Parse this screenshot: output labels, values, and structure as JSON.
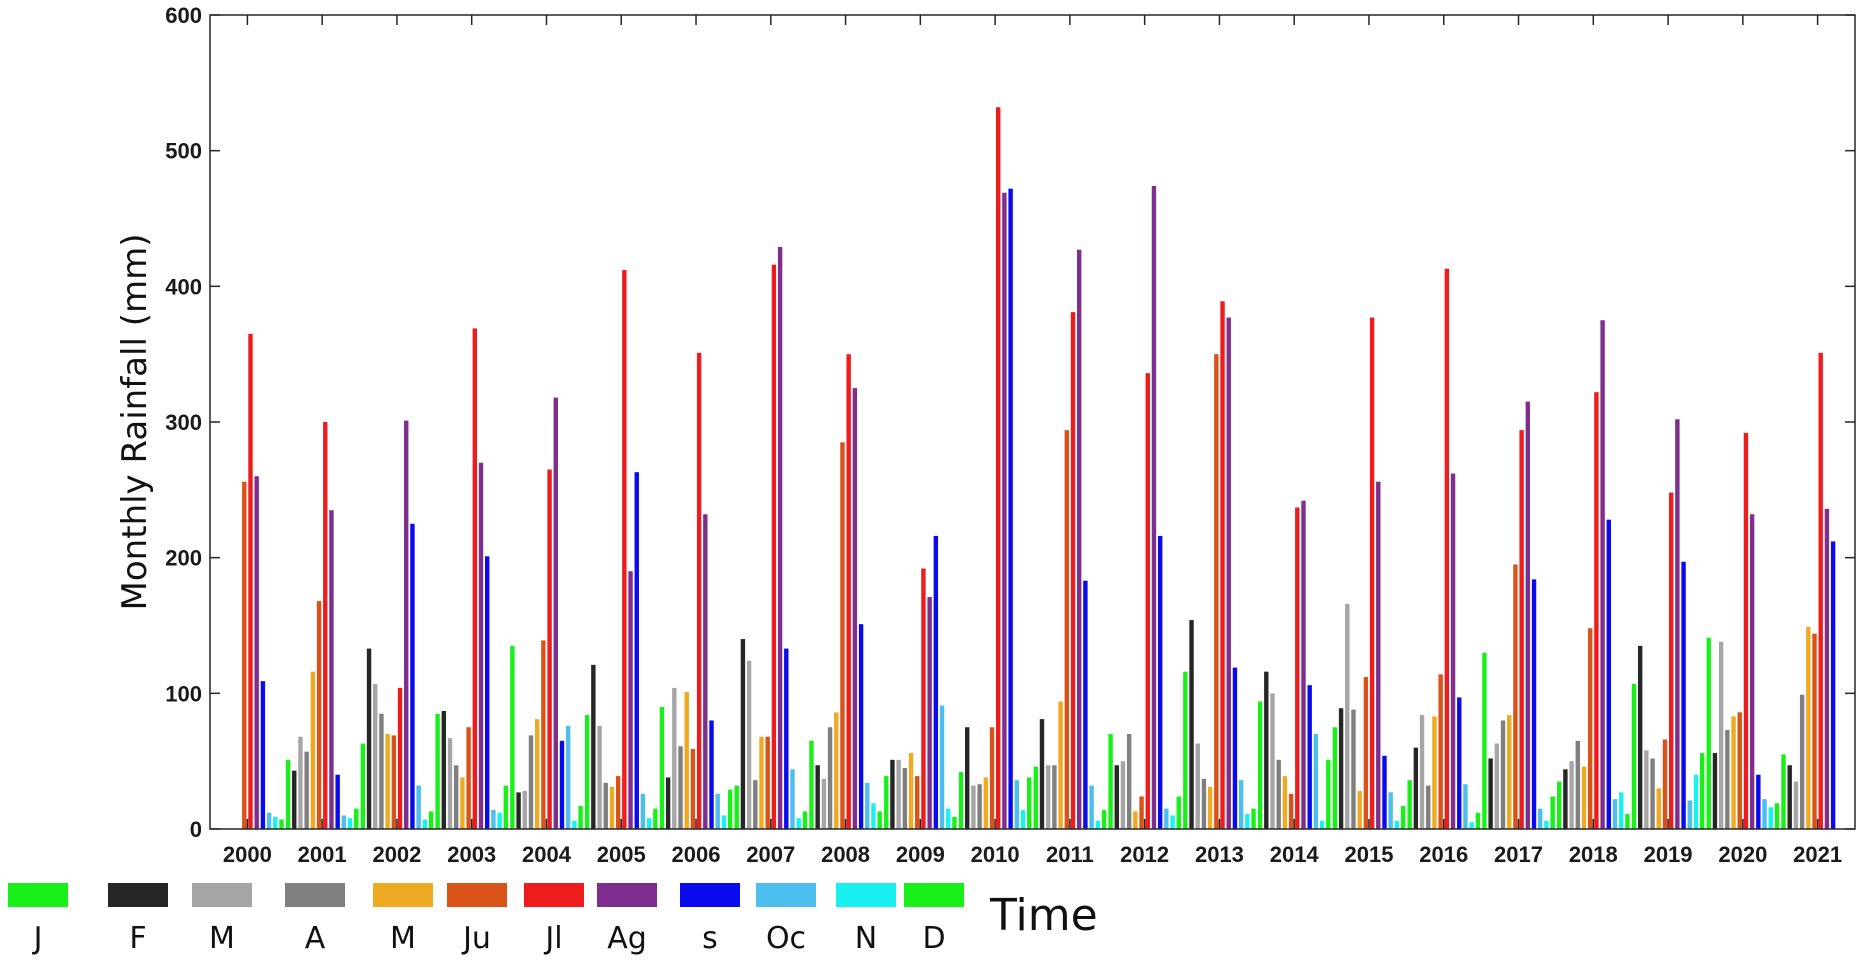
{
  "chart_data": {
    "type": "bar",
    "title": "",
    "xlabel": "Time",
    "ylabel": "Monthly Rainfall (mm)",
    "ylim": [
      0,
      600
    ],
    "yticks": [
      0,
      100,
      200,
      300,
      400,
      500,
      600
    ],
    "grid": false,
    "legend_position": "bottom",
    "categories": [
      "2000",
      "2001",
      "2002",
      "2003",
      "2004",
      "2005",
      "2006",
      "2007",
      "2008",
      "2009",
      "2010",
      "2011",
      "2012",
      "2013",
      "2014",
      "2015",
      "2016",
      "2017",
      "2018",
      "2019",
      "2020",
      "2021"
    ],
    "series": [
      {
        "name": "J",
        "color": "#19f019",
        "values": [
          0,
          51,
          63,
          85,
          135,
          84,
          90,
          32,
          65,
          39,
          42,
          46,
          70,
          116,
          94,
          75,
          36,
          130,
          35,
          107,
          141,
          55
        ]
      },
      {
        "name": "F",
        "color": "#262626",
        "values": [
          0,
          43,
          133,
          87,
          27,
          121,
          38,
          140,
          47,
          51,
          75,
          81,
          47,
          154,
          116,
          89,
          60,
          52,
          44,
          135,
          56,
          47
        ]
      },
      {
        "name": "M",
        "color": "#a6a6a6",
        "values": [
          0,
          68,
          107,
          67,
          28,
          76,
          104,
          124,
          37,
          51,
          32,
          47,
          50,
          63,
          100,
          166,
          84,
          63,
          50,
          58,
          138,
          35
        ]
      },
      {
        "name": "A",
        "color": "#7f7f7f",
        "values": [
          0,
          57,
          85,
          47,
          69,
          34,
          61,
          36,
          75,
          45,
          33,
          47,
          70,
          37,
          51,
          88,
          32,
          80,
          65,
          52,
          73,
          99
        ]
      },
      {
        "name": "M",
        "color": "#edaa22",
        "values": [
          0,
          116,
          70,
          38,
          81,
          31,
          101,
          68,
          86,
          56,
          38,
          94,
          13,
          31,
          39,
          28,
          83,
          84,
          46,
          30,
          83,
          149
        ]
      },
      {
        "name": "Ju",
        "color": "#d95319",
        "values": [
          256,
          168,
          69,
          75,
          139,
          39,
          59,
          68,
          285,
          39,
          75,
          294,
          24,
          350,
          26,
          112,
          114,
          195,
          148,
          66,
          86,
          144
        ]
      },
      {
        "name": "Jl",
        "color": "#ee1c1c",
        "values": [
          365,
          300,
          104,
          369,
          265,
          412,
          351,
          416,
          350,
          192,
          532,
          381,
          336,
          389,
          237,
          377,
          413,
          294,
          322,
          248,
          292,
          351
        ]
      },
      {
        "name": "Ag",
        "color": "#7e2f8e",
        "values": [
          260,
          235,
          301,
          270,
          318,
          190,
          232,
          429,
          325,
          171,
          469,
          427,
          474,
          377,
          242,
          256,
          262,
          315,
          375,
          302,
          232,
          236
        ]
      },
      {
        "name": "s",
        "color": "#0a0aee",
        "values": [
          109,
          40,
          225,
          201,
          65,
          263,
          80,
          133,
          151,
          216,
          472,
          183,
          216,
          119,
          106,
          54,
          97,
          184,
          228,
          197,
          40,
          212
        ]
      },
      {
        "name": "Oc",
        "color": "#4dbeee",
        "values": [
          12,
          10,
          32,
          14,
          76,
          26,
          26,
          44,
          34,
          91,
          36,
          32,
          15,
          36,
          70,
          27,
          33,
          15,
          22,
          21,
          22,
          0
        ]
      },
      {
        "name": "N",
        "color": "#19f0f0",
        "values": [
          9,
          8,
          7,
          12,
          6,
          8,
          10,
          8,
          19,
          15,
          14,
          6,
          10,
          11,
          6,
          6,
          5,
          6,
          27,
          40,
          16,
          0
        ]
      },
      {
        "name": "D",
        "color": "#19f019",
        "values": [
          7,
          15,
          13,
          32,
          17,
          15,
          29,
          13,
          13,
          9,
          38,
          14,
          24,
          15,
          51,
          17,
          12,
          24,
          11,
          56,
          19,
          0
        ]
      }
    ]
  }
}
